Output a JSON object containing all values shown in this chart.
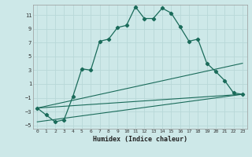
{
  "xlabel": "Humidex (Indice chaleur)",
  "background_color": "#cde8e8",
  "grid_color": "#b8d8d8",
  "line_color": "#1a6b5a",
  "xlim": [
    -0.5,
    23.5
  ],
  "ylim": [
    -5.5,
    12.5
  ],
  "xticks": [
    0,
    1,
    2,
    3,
    4,
    5,
    6,
    7,
    8,
    9,
    10,
    11,
    12,
    13,
    14,
    15,
    16,
    17,
    18,
    19,
    20,
    21,
    22,
    23
  ],
  "yticks": [
    -5,
    -3,
    -1,
    1,
    3,
    5,
    7,
    9,
    11
  ],
  "series": [
    [
      0,
      -2.5
    ],
    [
      1,
      -3.5
    ],
    [
      2,
      -4.5
    ],
    [
      3,
      -4.2
    ],
    [
      4,
      -0.8
    ],
    [
      5,
      3.2
    ],
    [
      6,
      3.0
    ],
    [
      7,
      7.2
    ],
    [
      8,
      7.5
    ],
    [
      9,
      9.2
    ],
    [
      10,
      9.5
    ],
    [
      11,
      12.2
    ],
    [
      12,
      10.5
    ],
    [
      13,
      10.5
    ],
    [
      14,
      12.0
    ],
    [
      15,
      11.3
    ],
    [
      16,
      9.3
    ],
    [
      17,
      7.2
    ],
    [
      18,
      7.5
    ],
    [
      19,
      4.0
    ],
    [
      20,
      2.8
    ],
    [
      21,
      1.5
    ],
    [
      22,
      -0.3
    ],
    [
      23,
      -0.5
    ]
  ],
  "line2": [
    [
      0,
      -2.5
    ],
    [
      23,
      4.0
    ]
  ],
  "line3": [
    [
      0,
      -2.5
    ],
    [
      23,
      -0.5
    ]
  ],
  "line4": [
    [
      0,
      -4.5
    ],
    [
      23,
      -0.5
    ]
  ]
}
